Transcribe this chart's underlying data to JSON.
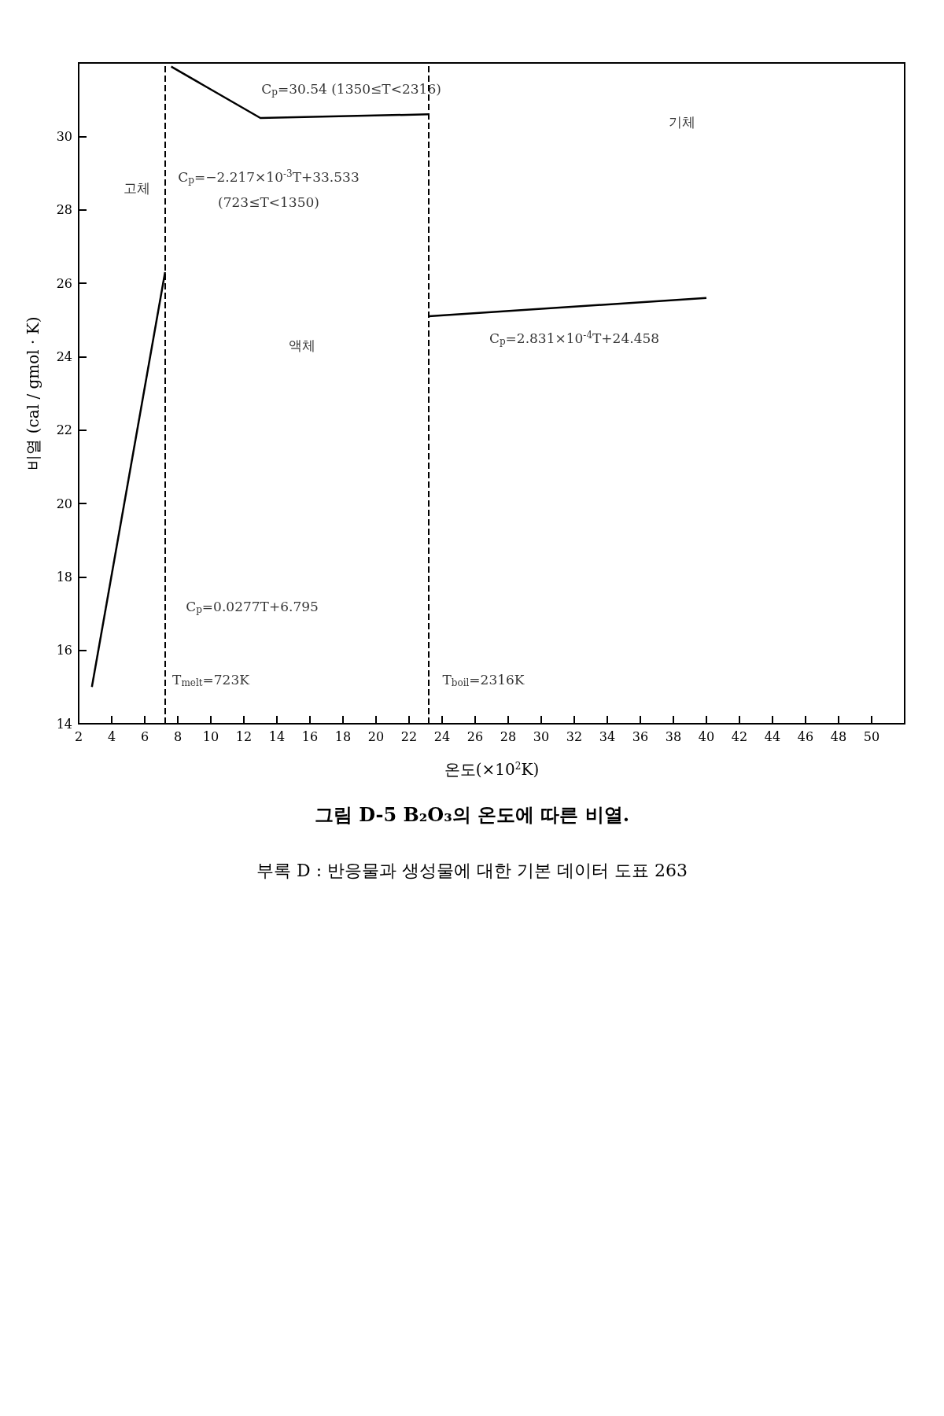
{
  "chart_data": {
    "type": "line",
    "title": "그림 D-5  B₂O₃의 온도에 따른 비열.",
    "xlabel": "온도(×10$^{2}$K)",
    "ylabel": "비열 (cal / gmol · K)",
    "xlim": [
      2,
      52
    ],
    "xticks": [
      2,
      4,
      6,
      8,
      10,
      12,
      14,
      16,
      18,
      20,
      22,
      24,
      26,
      28,
      30,
      32,
      34,
      36,
      38,
      40,
      42,
      44,
      46,
      48,
      50
    ],
    "ylim": [
      14,
      32
    ],
    "yticks": [
      14,
      16,
      18,
      20,
      22,
      24,
      26,
      28,
      30
    ],
    "grid": false,
    "marker": "none",
    "line_style": "solid",
    "series": [
      {
        "color": "#000000",
        "x": [
          2.8,
          7.23
        ],
        "values": [
          15.0,
          26.3
        ]
      },
      {
        "color": "#000000",
        "x": [
          7.6,
          13.0,
          23.2
        ],
        "values": [
          31.9,
          30.5,
          30.6
        ]
      },
      {
        "color": "#000000",
        "x": [
          23.2,
          40.0
        ],
        "values": [
          25.1,
          25.6
        ]
      }
    ],
    "ref_lines": [
      {
        "axis": "x",
        "value": 7.23,
        "color": "#000000",
        "line_style": "dashed"
      },
      {
        "axis": "x",
        "value": 23.16,
        "color": "#000000",
        "line_style": "dashed"
      }
    ],
    "annotations": [
      "고체",
      "액체",
      "기체",
      "C$_{p}$=0.0277T+6.795",
      "C$_{p}$=−2.217×10$^{-3}$T+33.533",
      "(723≤T<1350)",
      "C$_{p}$=30.54 (1350≤T<2316)",
      "C$_{p}$=2.831×10$^{-4}$T+24.458",
      "T$_{melt}$=723K",
      "T$_{boil}$=2316K",
      "부록 D : 반응물과 생성물에 대한 기본 데이터 도표  263"
    ]
  }
}
